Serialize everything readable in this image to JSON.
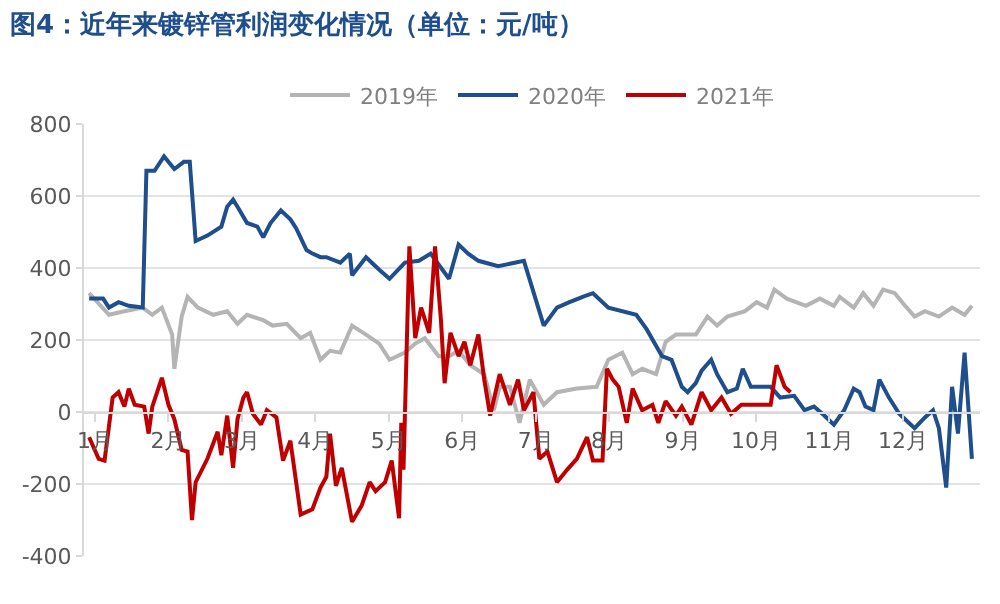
{
  "chart_data": {
    "type": "line",
    "title": "图4：近年来镀锌管利润变化情况（单位：元/吨）",
    "xlim": [
      0.85,
      13.05
    ],
    "xticks": [
      {
        "value": 1,
        "label": "1月"
      },
      {
        "value": 2,
        "label": "2月"
      },
      {
        "value": 3,
        "label": "3月"
      },
      {
        "value": 4,
        "label": "4月"
      },
      {
        "value": 5,
        "label": "5月"
      },
      {
        "value": 6,
        "label": "6月"
      },
      {
        "value": 7,
        "label": "7月"
      },
      {
        "value": 8,
        "label": "8月"
      },
      {
        "value": 9,
        "label": "9月"
      },
      {
        "value": 10,
        "label": "10月"
      },
      {
        "value": 11,
        "label": "11月"
      },
      {
        "value": 12,
        "label": "12月"
      }
    ],
    "ylim": [
      -400,
      800
    ],
    "yticks": [
      -400,
      -200,
      0,
      200,
      400,
      600,
      800
    ],
    "grid": "y",
    "legend": "top",
    "marker": "none",
    "line_style": "solid",
    "series": [
      {
        "name": "2019年",
        "color": "#b4b4b4",
        "x": [
          0.92,
          1.19,
          1.4,
          1.65,
          1.78,
          1.91,
          2.05,
          2.08,
          2.18,
          2.26,
          2.4,
          2.61,
          2.8,
          2.94,
          3.07,
          3.29,
          3.42,
          3.61,
          3.8,
          3.93,
          4.07,
          4.2,
          4.34,
          4.5,
          4.69,
          4.87,
          5.01,
          5.22,
          5.36,
          5.49,
          5.68,
          5.82,
          5.95,
          6.11,
          6.3,
          6.43,
          6.51,
          6.65,
          6.78,
          6.92,
          7.11,
          7.29,
          7.56,
          7.83,
          7.99,
          8.18,
          8.32,
          8.45,
          8.64,
          8.77,
          8.91,
          9.04,
          9.18,
          9.34,
          9.47,
          9.61,
          9.85,
          10.01,
          10.15,
          10.25,
          10.42,
          10.68,
          10.87,
          11.06,
          11.14,
          11.33,
          11.46,
          11.6,
          11.73,
          11.89,
          12.03,
          12.16,
          12.3,
          12.49,
          12.67,
          12.84,
          12.94
        ],
        "values": [
          330,
          270,
          280,
          290,
          270,
          290,
          215,
          120,
          265,
          320,
          290,
          270,
          280,
          245,
          270,
          255,
          240,
          245,
          205,
          220,
          145,
          170,
          165,
          240,
          215,
          190,
          145,
          165,
          190,
          205,
          155,
          155,
          170,
          130,
          105,
          5,
          70,
          70,
          -30,
          90,
          20,
          55,
          65,
          70,
          145,
          165,
          105,
          120,
          105,
          195,
          215,
          215,
          215,
          265,
          240,
          265,
          280,
          305,
          290,
          340,
          315,
          295,
          315,
          295,
          320,
          290,
          330,
          295,
          340,
          330,
          295,
          265,
          280,
          265,
          290,
          270,
          295
        ]
      },
      {
        "name": "2020年",
        "color": "#1f4e8c",
        "x": [
          0.92,
          1.11,
          1.19,
          1.32,
          1.46,
          1.65,
          1.7,
          1.81,
          1.94,
          2.08,
          2.21,
          2.29,
          2.37,
          2.53,
          2.72,
          2.8,
          2.88,
          2.94,
          3.07,
          3.21,
          3.29,
          3.39,
          3.53,
          3.66,
          3.74,
          3.88,
          3.96,
          4.07,
          4.15,
          4.34,
          4.47,
          4.5,
          4.69,
          4.87,
          5.01,
          5.22,
          5.41,
          5.57,
          5.82,
          5.95,
          6.08,
          6.22,
          6.49,
          6.84,
          7.11,
          7.29,
          7.46,
          7.64,
          7.78,
          7.99,
          8.37,
          8.51,
          8.72,
          8.85,
          8.99,
          9.07,
          9.18,
          9.26,
          9.39,
          9.47,
          9.61,
          9.74,
          9.82,
          9.93,
          10.2,
          10.33,
          10.52,
          10.66,
          10.79,
          10.93,
          11.06,
          11.2,
          11.33,
          11.41,
          11.49,
          11.6,
          11.68,
          11.81,
          11.95,
          12.08,
          12.16,
          12.3,
          12.41,
          12.49,
          12.59,
          12.67,
          12.75,
          12.84,
          12.94
        ],
        "values": [
          315,
          315,
          290,
          305,
          295,
          290,
          670,
          670,
          710,
          675,
          695,
          695,
          475,
          490,
          515,
          570,
          590,
          570,
          525,
          515,
          485,
          525,
          560,
          535,
          510,
          450,
          440,
          430,
          430,
          415,
          440,
          380,
          430,
          395,
          370,
          415,
          420,
          440,
          370,
          465,
          440,
          420,
          405,
          420,
          240,
          290,
          305,
          320,
          330,
          290,
          270,
          230,
          155,
          145,
          70,
          55,
          80,
          115,
          145,
          105,
          55,
          65,
          120,
          70,
          70,
          40,
          45,
          5,
          15,
          -10,
          -35,
          5,
          65,
          55,
          15,
          5,
          90,
          40,
          -5,
          -30,
          -45,
          -15,
          5,
          -45,
          -210,
          70,
          -60,
          165,
          -130
        ]
      },
      {
        "name": "2021年",
        "color": "#c00000",
        "x": [
          0.92,
          1.05,
          1.13,
          1.24,
          1.32,
          1.4,
          1.46,
          1.54,
          1.67,
          1.73,
          1.78,
          1.91,
          2.0,
          2.08,
          2.18,
          2.26,
          2.32,
          2.37,
          2.53,
          2.67,
          2.72,
          2.8,
          2.88,
          2.94,
          3.02,
          3.07,
          3.15,
          3.26,
          3.34,
          3.47,
          3.56,
          3.66,
          3.8,
          3.96,
          4.07,
          4.15,
          4.2,
          4.28,
          4.36,
          4.5,
          4.63,
          4.74,
          4.82,
          4.95,
          5.04,
          5.14,
          5.17,
          5.2,
          5.28,
          5.36,
          5.44,
          5.55,
          5.63,
          5.71,
          5.76,
          5.84,
          5.95,
          6.03,
          6.11,
          6.22,
          6.3,
          6.38,
          6.51,
          6.65,
          6.76,
          6.84,
          6.97,
          7.05,
          7.16,
          7.29,
          7.43,
          7.56,
          7.7,
          7.78,
          7.91,
          7.97,
          8.05,
          8.13,
          8.24,
          8.32,
          8.45,
          8.59,
          8.67,
          8.77,
          8.91,
          8.99,
          9.12,
          9.26,
          9.39,
          9.53,
          9.66,
          9.8,
          9.98,
          10.2,
          10.28,
          10.39,
          10.47
        ],
        "values": [
          -70,
          -130,
          -135,
          40,
          55,
          15,
          65,
          20,
          15,
          -60,
          15,
          95,
          20,
          -20,
          -105,
          -110,
          -300,
          -195,
          -130,
          -55,
          -120,
          -10,
          -155,
          -20,
          40,
          55,
          -5,
          -35,
          5,
          -15,
          -135,
          -80,
          -285,
          -270,
          -210,
          -180,
          -60,
          -205,
          -155,
          -305,
          -260,
          -195,
          -220,
          -195,
          -135,
          -295,
          -30,
          -160,
          460,
          205,
          290,
          220,
          460,
          255,
          80,
          220,
          155,
          195,
          130,
          215,
          90,
          -10,
          105,
          20,
          90,
          5,
          55,
          -130,
          -110,
          -195,
          -160,
          -130,
          -70,
          -135,
          -135,
          120,
          90,
          70,
          -30,
          65,
          5,
          20,
          -30,
          30,
          -10,
          15,
          -35,
          55,
          5,
          40,
          -5,
          20,
          20,
          20,
          130,
          70,
          55
        ]
      }
    ]
  }
}
